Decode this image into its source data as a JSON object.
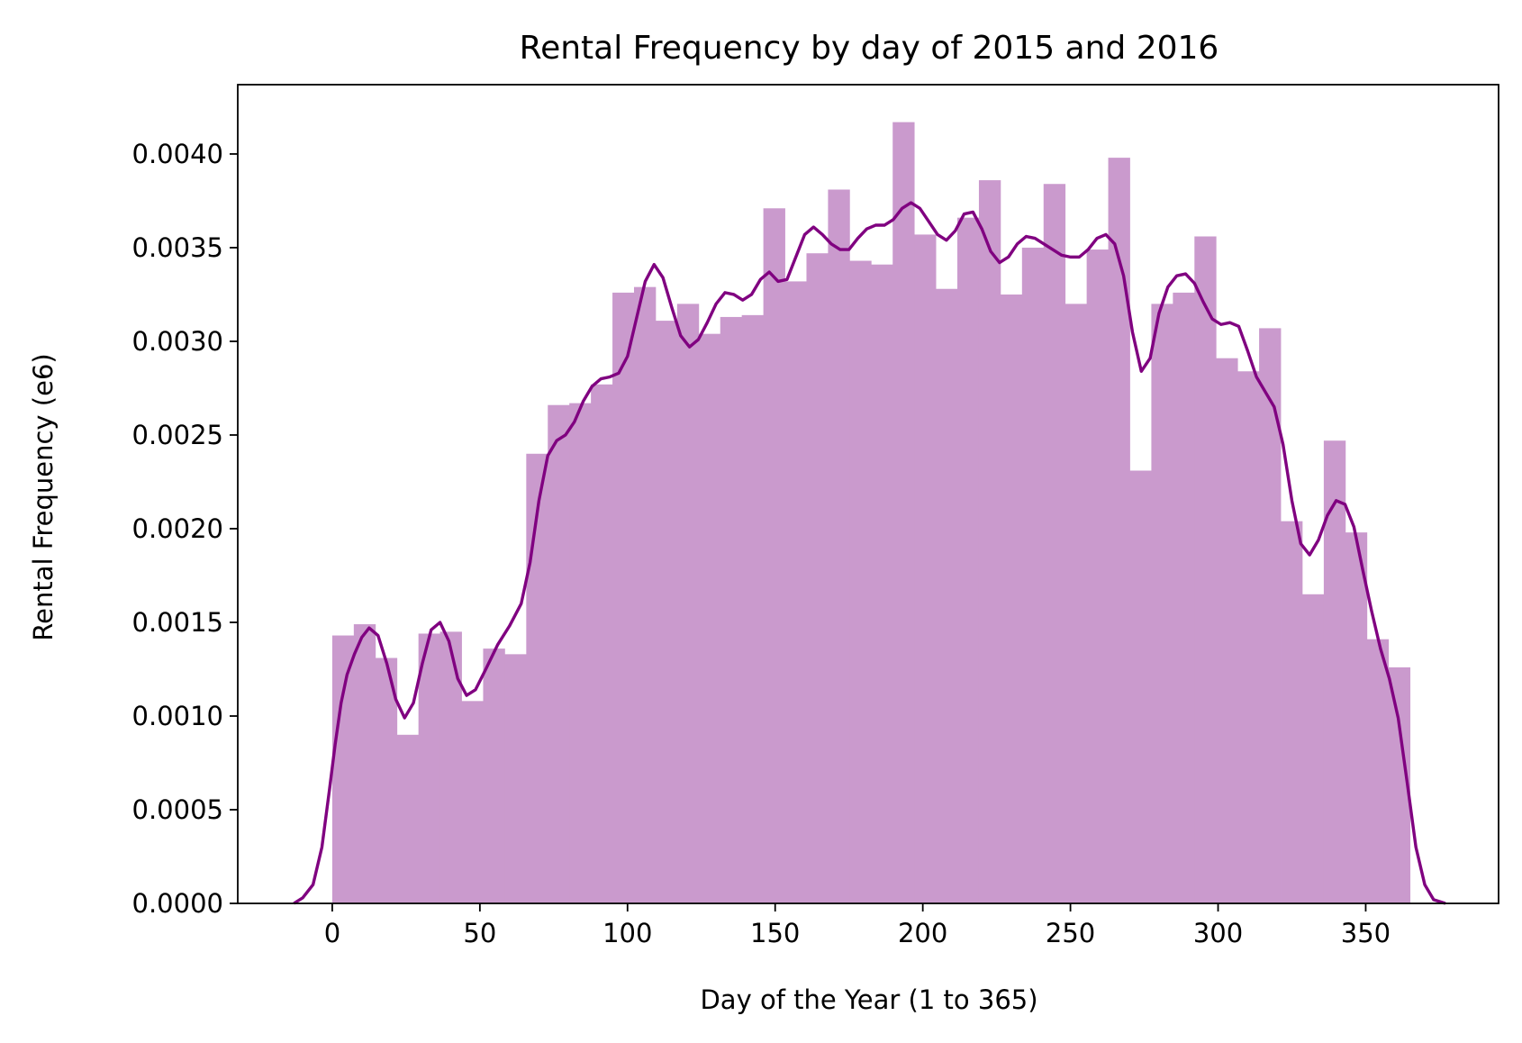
{
  "chart_data": {
    "type": "bar",
    "title": "Rental Frequency by day of 2015 and 2016",
    "xlabel": "Day of the Year (1 to 365)",
    "ylabel": "Rental Frequency (e6)",
    "xlim": [
      -32,
      395
    ],
    "ylim": [
      0,
      0.00437
    ],
    "xticks": [
      0,
      50,
      100,
      150,
      200,
      250,
      300,
      350
    ],
    "xtick_labels": [
      "0",
      "50",
      "100",
      "150",
      "200",
      "250",
      "300",
      "350"
    ],
    "yticks": [
      0,
      0.0005,
      0.001,
      0.0015,
      0.002,
      0.0025,
      0.003,
      0.0035,
      0.004
    ],
    "ytick_labels": [
      "0.0000",
      "0.0005",
      "0.0010",
      "0.0015",
      "0.0020",
      "0.0025",
      "0.0030",
      "0.0035",
      "0.0040"
    ],
    "grid": false,
    "legend": "none",
    "histogram": {
      "bin_start": 0,
      "bin_width": 7.3,
      "bin_edges": [
        0,
        7.3,
        14.6,
        21.9,
        29.2,
        36.5,
        43.8,
        51.1,
        58.4,
        65.7,
        73,
        80.3,
        87.6,
        94.9,
        102.2,
        109.5,
        116.8,
        124.1,
        131.4,
        138.7,
        146,
        153.3,
        160.6,
        167.9,
        175.2,
        182.5,
        189.8,
        197.1,
        204.4,
        211.7,
        219,
        226.3,
        233.6,
        240.9,
        248.2,
        255.5,
        262.8,
        270.1,
        277.4,
        284.7,
        292,
        299.3,
        306.6,
        313.9,
        321.2,
        328.5,
        335.8,
        343.1,
        350.4,
        357.7,
        365
      ],
      "values": [
        0.00143,
        0.00149,
        0.00131,
        0.0009,
        0.00144,
        0.00145,
        0.00108,
        0.00136,
        0.00133,
        0.0024,
        0.00266,
        0.00267,
        0.00277,
        0.00326,
        0.00329,
        0.00311,
        0.0032,
        0.00304,
        0.00313,
        0.00314,
        0.00371,
        0.00332,
        0.00347,
        0.00381,
        0.00343,
        0.00341,
        0.00417,
        0.00357,
        0.00328,
        0.00366,
        0.00386,
        0.00325,
        0.0035,
        0.00384,
        0.0032,
        0.00349,
        0.00398,
        0.00231,
        0.0032,
        0.00326,
        0.00356,
        0.00291,
        0.00284,
        0.00307,
        0.00204,
        0.00165,
        0.00247,
        0.00198,
        0.00141,
        0.00126
      ],
      "color": "#CA9ACD"
    },
    "kde": {
      "color": "#800080",
      "x": [
        -13,
        -10,
        -6.5,
        -3.5,
        -1,
        1,
        3,
        5,
        7.5,
        10,
        12.5,
        15.5,
        18.5,
        21.5,
        24.5,
        27.5,
        30.5,
        33.5,
        36.5,
        39.5,
        42.5,
        45.5,
        48.5,
        52,
        56,
        60,
        64,
        67,
        70,
        73,
        76,
        79,
        82,
        85,
        88,
        91,
        94,
        97,
        100,
        103,
        106,
        109,
        112,
        115,
        118,
        121,
        124,
        127,
        130,
        133,
        136,
        139,
        142,
        145,
        148,
        151,
        154,
        157,
        160,
        163,
        166,
        169,
        172,
        175,
        178,
        181,
        184,
        187,
        190,
        193,
        196,
        199,
        202,
        205,
        208,
        211,
        214,
        217,
        220,
        223,
        226,
        229,
        232,
        235,
        238,
        241,
        244,
        247,
        250,
        253,
        256,
        259,
        262,
        265,
        268,
        271,
        274,
        277,
        280,
        283,
        286,
        289,
        292,
        295,
        298,
        301,
        304,
        307,
        310,
        313,
        316,
        319,
        322,
        325,
        328,
        331,
        334,
        337,
        340,
        343,
        346,
        349,
        352,
        355,
        358,
        361,
        364,
        367,
        370,
        373,
        377
      ],
      "y": [
        0,
        3e-05,
        0.0001,
        0.0003,
        0.0006,
        0.00085,
        0.00107,
        0.00122,
        0.00133,
        0.00142,
        0.00147,
        0.00143,
        0.00128,
        0.00109,
        0.00099,
        0.00107,
        0.00128,
        0.00146,
        0.0015,
        0.0014,
        0.0012,
        0.00111,
        0.00114,
        0.00125,
        0.00138,
        0.00148,
        0.0016,
        0.00182,
        0.00215,
        0.00239,
        0.00247,
        0.0025,
        0.00257,
        0.00268,
        0.00276,
        0.0028,
        0.00281,
        0.00283,
        0.00292,
        0.00312,
        0.00332,
        0.00341,
        0.00334,
        0.00318,
        0.00303,
        0.00297,
        0.00301,
        0.0031,
        0.0032,
        0.00326,
        0.00325,
        0.00322,
        0.00325,
        0.00333,
        0.00337,
        0.00332,
        0.00333,
        0.00345,
        0.00357,
        0.00361,
        0.00357,
        0.00352,
        0.00349,
        0.00349,
        0.00355,
        0.0036,
        0.00362,
        0.00362,
        0.00365,
        0.00371,
        0.00374,
        0.00371,
        0.00364,
        0.00357,
        0.00354,
        0.00359,
        0.00368,
        0.00369,
        0.0036,
        0.00348,
        0.00342,
        0.00345,
        0.00352,
        0.00356,
        0.00355,
        0.00352,
        0.00349,
        0.00346,
        0.00345,
        0.00345,
        0.00349,
        0.00355,
        0.00357,
        0.00352,
        0.00335,
        0.00305,
        0.00284,
        0.00291,
        0.00315,
        0.00329,
        0.00335,
        0.00336,
        0.00331,
        0.00321,
        0.00312,
        0.00309,
        0.0031,
        0.00308,
        0.00295,
        0.00281,
        0.00273,
        0.00265,
        0.00245,
        0.00215,
        0.00192,
        0.00186,
        0.00194,
        0.00207,
        0.00215,
        0.00213,
        0.00201,
        0.00178,
        0.00156,
        0.00136,
        0.0012,
        0.00099,
        0.00065,
        0.0003,
        0.0001,
        2e-05,
        0
      ]
    }
  }
}
